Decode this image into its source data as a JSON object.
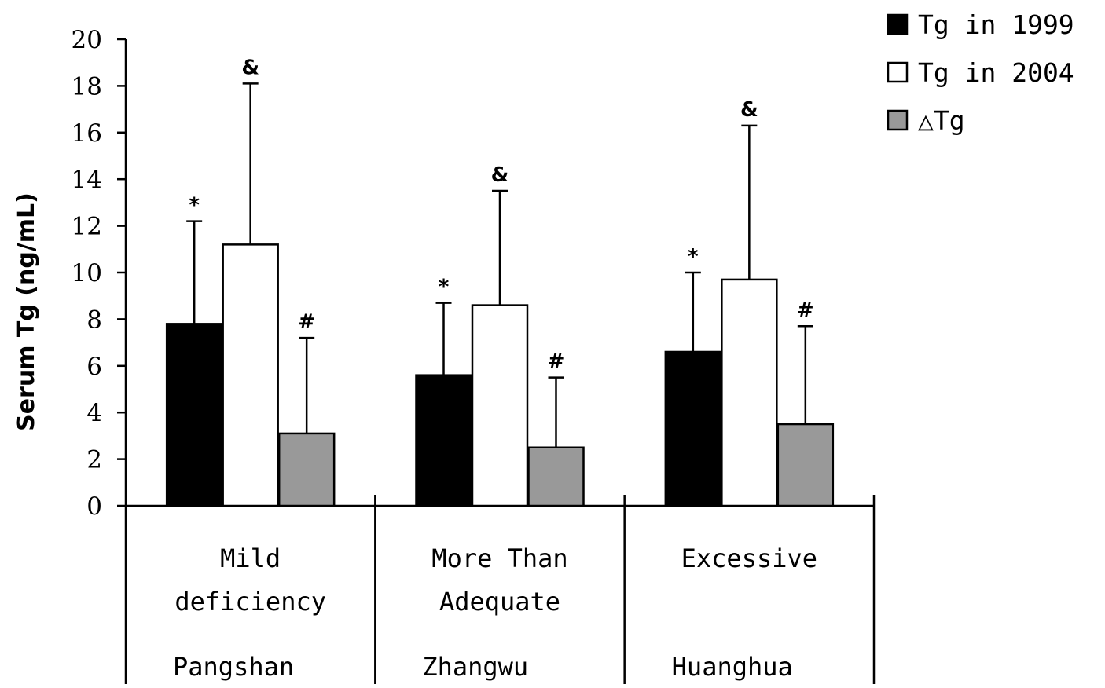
{
  "chart_data": {
    "type": "bar",
    "title": "",
    "xlabel": "",
    "ylabel": "Serum Tg (ng/mL)",
    "ylim": [
      0,
      20
    ],
    "yticks": [
      0,
      2,
      4,
      6,
      8,
      10,
      12,
      14,
      16,
      18,
      20
    ],
    "grid": false,
    "legend_position": "top-right",
    "categories": [
      {
        "lines": [
          "Mild",
          "deficiency"
        ],
        "site": "Pangshan"
      },
      {
        "lines": [
          "More Than",
          "Adequate"
        ],
        "site": "Zhangwu"
      },
      {
        "lines": [
          "Excessive"
        ],
        "site": "Huanghua"
      }
    ],
    "series": [
      {
        "name": "Tg in 1999",
        "color": "#000000",
        "values": [
          7.8,
          5.6,
          6.6
        ],
        "error": [
          4.4,
          3.1,
          3.4
        ],
        "markers": [
          "*",
          "*",
          "*"
        ]
      },
      {
        "name": "Tg in 2004",
        "color": "#ffffff",
        "values": [
          11.2,
          8.6,
          9.7
        ],
        "error": [
          6.9,
          4.9,
          6.6
        ],
        "markers": [
          "&",
          "&",
          "&"
        ]
      },
      {
        "name": "△Tg",
        "color": "#999999",
        "values": [
          3.1,
          2.5,
          3.5
        ],
        "error": [
          4.1,
          3.0,
          4.2
        ],
        "markers": [
          "#",
          "#",
          "#"
        ]
      }
    ]
  }
}
